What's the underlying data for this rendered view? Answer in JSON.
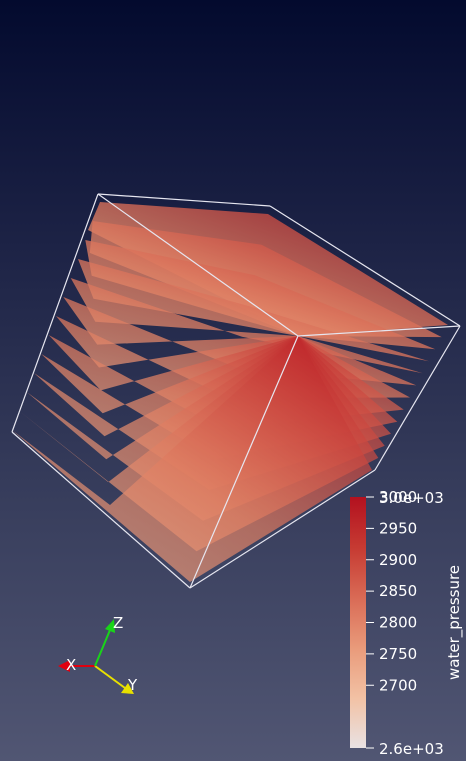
{
  "scene": {
    "background_top": "#030a2e",
    "background_bottom": "#515673",
    "outline_color": "#e6e6f0",
    "slice_count": 13
  },
  "colorbar": {
    "title": "water_pressure",
    "range": [
      2600,
      3000
    ],
    "range_min_label": "2.6e+03",
    "range_max_label": "3.0e+03",
    "ticks": [
      "3000",
      "2950",
      "2900",
      "2850",
      "2800",
      "2750",
      "2700"
    ],
    "tick_values": [
      3000,
      2950,
      2900,
      2850,
      2800,
      2750,
      2700
    ],
    "colormap": [
      "#e9e2e3",
      "#f2c1a4",
      "#e99a7a",
      "#d96a55",
      "#c63a32",
      "#b3111f"
    ]
  },
  "orientation_axes": {
    "x_label": "X",
    "y_label": "Y",
    "z_label": "Z",
    "x_color": "#e0000f",
    "y_color": "#e8e000",
    "z_color": "#19d419"
  }
}
